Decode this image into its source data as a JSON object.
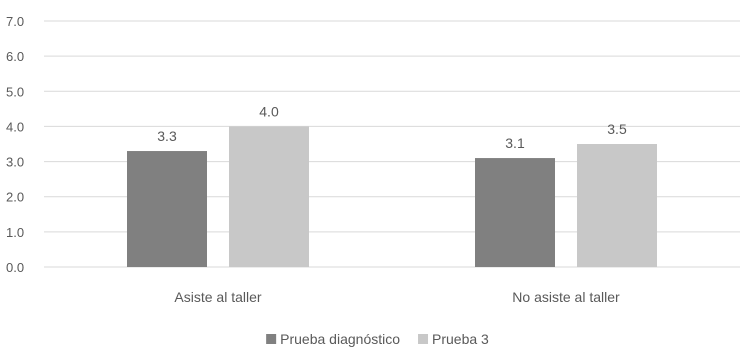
{
  "chart_data": {
    "type": "bar",
    "title": "",
    "xlabel": "",
    "ylabel": "",
    "categories": [
      "Asiste al taller",
      "No asiste al taller"
    ],
    "series": [
      {
        "name": "Prueba diagnóstico",
        "values": [
          3.3,
          3.1
        ],
        "labels": [
          "3.3",
          "3.1"
        ],
        "color": "#808080"
      },
      {
        "name": "Prueba 3",
        "values": [
          4.0,
          3.5
        ],
        "labels": [
          "4.0",
          "3.5"
        ],
        "color": "#c8c8c8"
      }
    ],
    "ylim": [
      0,
      7
    ],
    "yticks": [
      0,
      1,
      2,
      3,
      4,
      5,
      6,
      7
    ],
    "ytick_labels": [
      "0.0",
      "1.0",
      "2.0",
      "3.0",
      "4.0",
      "5.0",
      "6.0",
      "7.0"
    ],
    "grid": true,
    "legend_position": "bottom-center",
    "colors": {
      "gridline": "#d9d9d9",
      "text": "#595959"
    }
  }
}
